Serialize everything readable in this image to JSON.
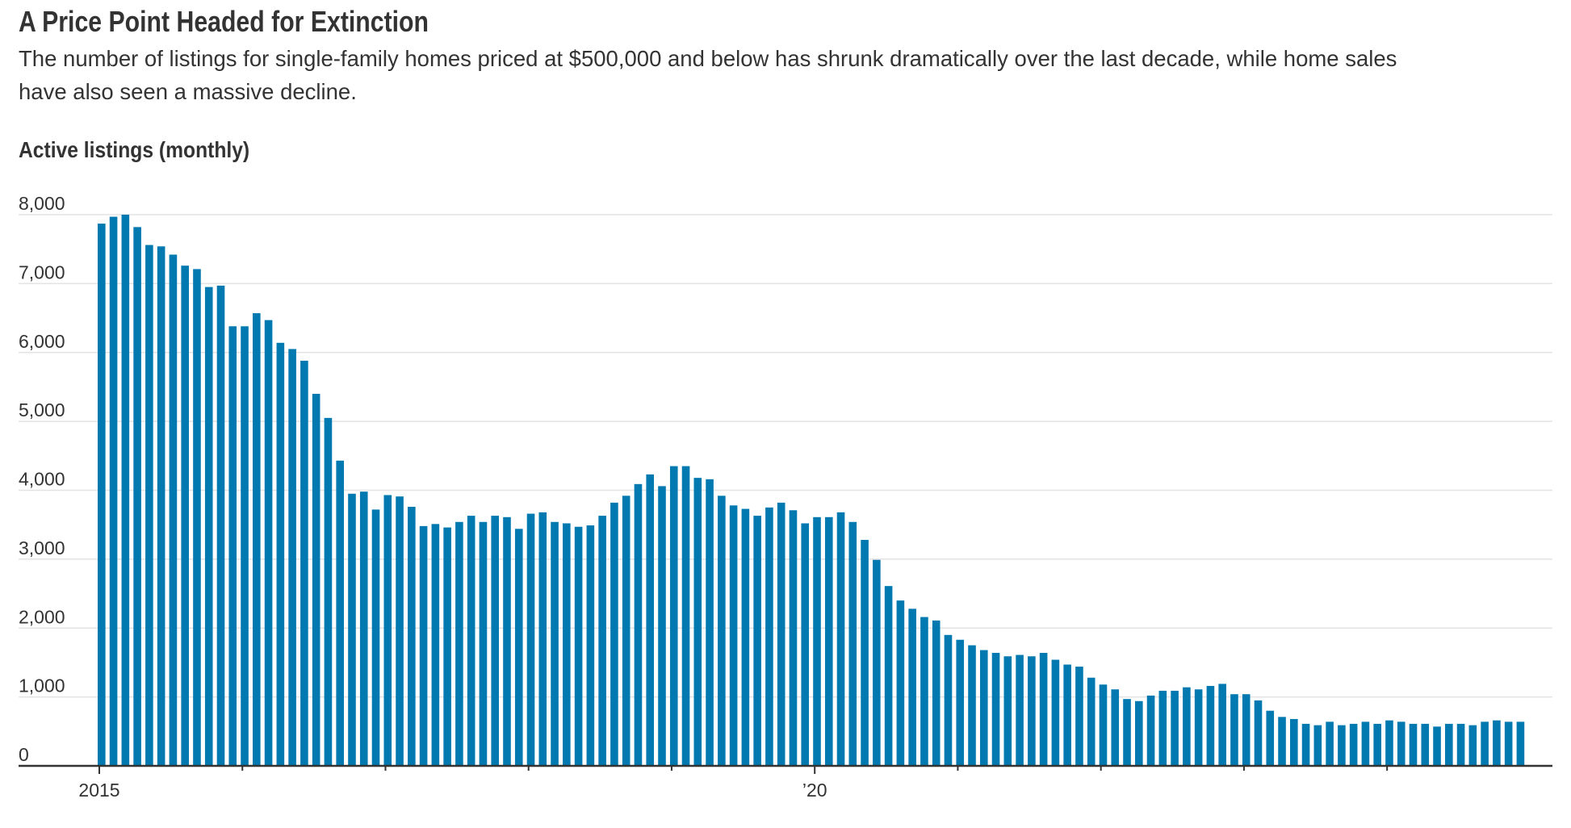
{
  "header": {
    "title": "A Price Point Headed for Extinction",
    "subtitle_lines": [
      "The number of listings for single-family homes priced at $500,000 and below has shrunk dramatically over the last decade, while home sales",
      "have also seen a massive decline."
    ]
  },
  "colors": {
    "bar": "#0079B0",
    "grid": "#e3e3e3",
    "axis": "#333333",
    "text": "#333333"
  },
  "chart_data": {
    "type": "bar",
    "title": "Active listings (monthly)",
    "xlabel": "",
    "ylabel": "",
    "ylim": [
      0,
      8000
    ],
    "yticks": [
      0,
      1000,
      2000,
      3000,
      4000,
      5000,
      6000,
      7000,
      8000
    ],
    "ytick_labels": [
      "0",
      "1,000",
      "2,000",
      "3,000",
      "4,000",
      "5,000",
      "6,000",
      "7,000",
      "8,000"
    ],
    "grid": true,
    "x_start": "2015-01",
    "frequency": "monthly",
    "year_ticks": [
      2015,
      2016,
      2017,
      2018,
      2019,
      2020,
      2021,
      2022,
      2023,
      2024
    ],
    "xtick_labels": [
      {
        "year": 2015,
        "label": "2015"
      },
      {
        "year": 2020,
        "label": "’20"
      }
    ],
    "values": [
      7870,
      7970,
      8000,
      7820,
      7560,
      7540,
      7420,
      7260,
      7210,
      6950,
      6970,
      6380,
      6380,
      6570,
      6470,
      6140,
      6050,
      5880,
      5400,
      5050,
      4430,
      3950,
      3980,
      3720,
      3930,
      3910,
      3760,
      3480,
      3510,
      3460,
      3540,
      3630,
      3540,
      3630,
      3610,
      3440,
      3660,
      3680,
      3540,
      3520,
      3470,
      3490,
      3630,
      3820,
      3920,
      4090,
      4230,
      4060,
      4350,
      4350,
      4180,
      4160,
      3920,
      3780,
      3730,
      3630,
      3750,
      3820,
      3710,
      3520,
      3610,
      3610,
      3680,
      3540,
      3280,
      2990,
      2610,
      2400,
      2280,
      2160,
      2110,
      1900,
      1830,
      1750,
      1680,
      1640,
      1590,
      1610,
      1590,
      1640,
      1540,
      1470,
      1440,
      1280,
      1180,
      1110,
      970,
      940,
      1020,
      1090,
      1090,
      1140,
      1110,
      1160,
      1190,
      1040,
      1040,
      950,
      800,
      710,
      680,
      610,
      590,
      640,
      590,
      610,
      640,
      610,
      660,
      640,
      610,
      610,
      570,
      610,
      610,
      590,
      640,
      660,
      640,
      640
    ]
  }
}
